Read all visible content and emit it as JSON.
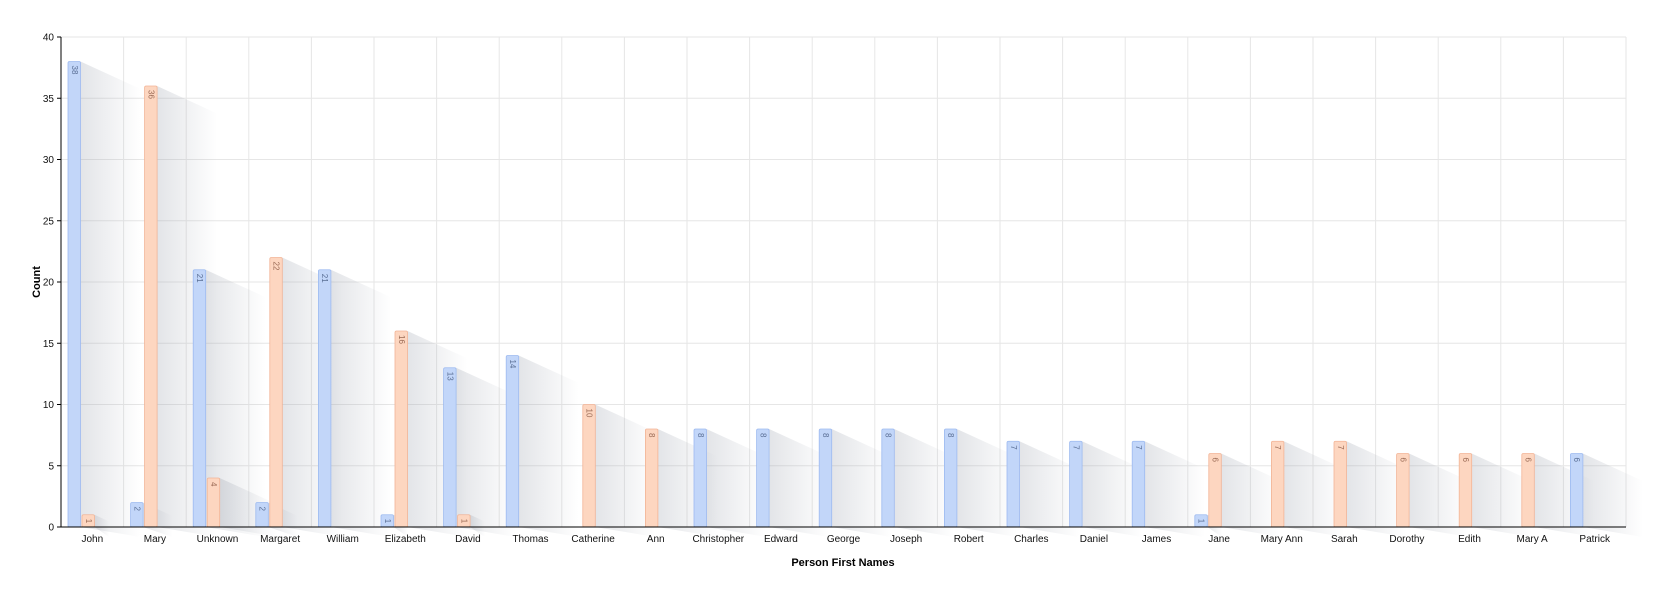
{
  "chart_data": {
    "type": "bar",
    "title": "",
    "xlabel": "Person First Names",
    "ylabel": "Count",
    "ylim": [
      0,
      40
    ],
    "yticks": [
      0,
      5,
      10,
      15,
      20,
      25,
      30,
      35,
      40
    ],
    "grid": true,
    "legend": "none",
    "categories": [
      "John",
      "Mary",
      "Unknown",
      "Margaret",
      "William",
      "Elizabeth",
      "David",
      "Thomas",
      "Catherine",
      "Ann",
      "Christopher",
      "Edward",
      "George",
      "Joseph",
      "Robert",
      "Charles",
      "Daniel",
      "James",
      "Jane",
      "Mary Ann",
      "Sarah",
      "Dorothy",
      "Edith",
      "Mary A",
      "Patrick"
    ],
    "series": [
      {
        "color": "#c2d6f9",
        "stroke": "#9dbaf0",
        "label_color": "#5a6f95",
        "values": [
          38,
          2,
          21,
          2,
          21,
          1,
          13,
          14,
          0,
          0,
          8,
          8,
          8,
          8,
          8,
          7,
          7,
          7,
          1,
          0,
          0,
          0,
          0,
          0,
          6
        ]
      },
      {
        "color": "#fdd6c0",
        "stroke": "#f2b496",
        "label_color": "#9a6a55",
        "values": [
          1,
          36,
          4,
          22,
          0,
          16,
          1,
          0,
          10,
          8,
          0,
          0,
          0,
          0,
          0,
          0,
          0,
          0,
          6,
          7,
          7,
          6,
          6,
          6,
          0
        ]
      }
    ]
  }
}
